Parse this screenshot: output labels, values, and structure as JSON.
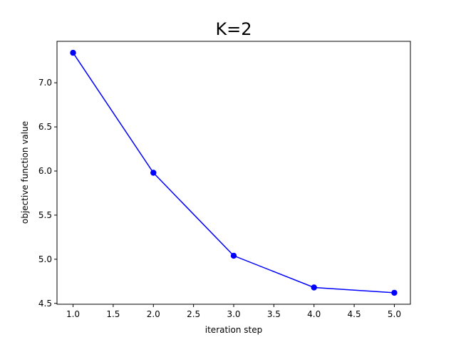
{
  "chart_data": {
    "type": "line",
    "title": "K=2",
    "xlabel": "iteration step",
    "ylabel": "objective function value",
    "x": [
      1,
      2,
      3,
      4,
      5
    ],
    "series": [
      {
        "values": [
          7.34,
          5.98,
          5.04,
          4.68,
          4.62
        ],
        "color": "#0000ff",
        "marker": "circle"
      }
    ],
    "xlim": [
      0.8,
      5.2
    ],
    "ylim": [
      4.49,
      7.47
    ],
    "xticks": [
      1.0,
      1.5,
      2.0,
      2.5,
      3.0,
      3.5,
      4.0,
      4.5,
      5.0
    ],
    "xtick_labels": [
      "1.0",
      "1.5",
      "2.0",
      "2.5",
      "3.0",
      "3.5",
      "4.0",
      "4.5",
      "5.0"
    ],
    "yticks": [
      4.5,
      5.0,
      5.5,
      6.0,
      6.5,
      7.0
    ],
    "ytick_labels": [
      "4.5",
      "5.0",
      "5.5",
      "6.0",
      "6.5",
      "7.0"
    ],
    "grid": false,
    "legend": "none"
  }
}
